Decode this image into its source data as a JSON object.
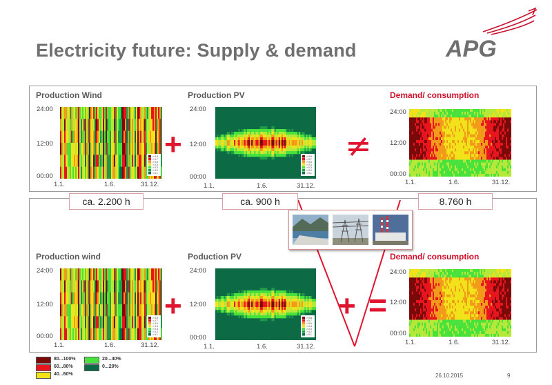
{
  "slide": {
    "title": "Electricity future: Supply & demand",
    "logo_text": "APG",
    "date": "26.10.2015",
    "page_number": "9"
  },
  "top_panel": {
    "wind_title": "Production Wind",
    "pv_title": "Production PV",
    "demand_title": "Demand/ consumption",
    "operator_plus": "+",
    "operator_not_equal": "≠"
  },
  "bottom_panel": {
    "wind_title": "Production wind",
    "pv_title": "Poduction PV",
    "demand_title": "Demand/ consumption",
    "operator_plus": "+",
    "operator_plus_storage": "+",
    "operator_equal": "="
  },
  "hours": {
    "wind": "ca. 2.200 h",
    "pv": "ca. 900 h",
    "demand": "8.760 h"
  },
  "axes": {
    "y_ticks": [
      "24:00",
      "12:00",
      "00:00"
    ],
    "x_ticks": [
      "1.1.",
      "1.6.",
      "31.12."
    ]
  },
  "legend": [
    {
      "label": "80...100%",
      "color": "#7a0a0a"
    },
    {
      "label": "60...80%",
      "color": "#e8141e"
    },
    {
      "label": "40...60%",
      "color": "#f2e21a"
    },
    {
      "label": "20...40%",
      "color": "#49e23c"
    },
    {
      "label": "0...20%",
      "color": "#0c6a45"
    }
  ],
  "mini_legend": [
    "> 0.8",
    "> 0.7",
    "> 0.6",
    "> 0.4",
    "> 0.3",
    "> 0.2",
    "> 0.1"
  ],
  "photos": [
    "hydro-storage-reservoir-photo",
    "power-lines-photo",
    "power-plant-photo"
  ]
}
